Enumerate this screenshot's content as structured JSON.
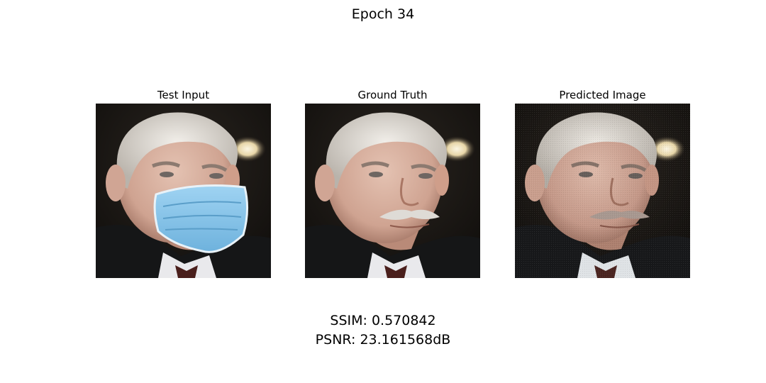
{
  "figure": {
    "title": "Epoch 34",
    "panels": [
      {
        "title": "Test Input",
        "content": "portrait-with-surgical-mask"
      },
      {
        "title": "Ground Truth",
        "content": "portrait-with-mustache"
      },
      {
        "title": "Predicted Image",
        "content": "portrait-reconstructed"
      }
    ],
    "metrics": {
      "ssim_text": "SSIM: 0.570842",
      "psnr_text": "PSNR: 23.161568dB"
    }
  },
  "colors": {
    "background": "#1a1712",
    "skin": "#d9b3a2",
    "hair": "#e6e2dc",
    "mask": "#8fc8ec",
    "jacket": "#141516",
    "lamp": "#f3ead0"
  }
}
